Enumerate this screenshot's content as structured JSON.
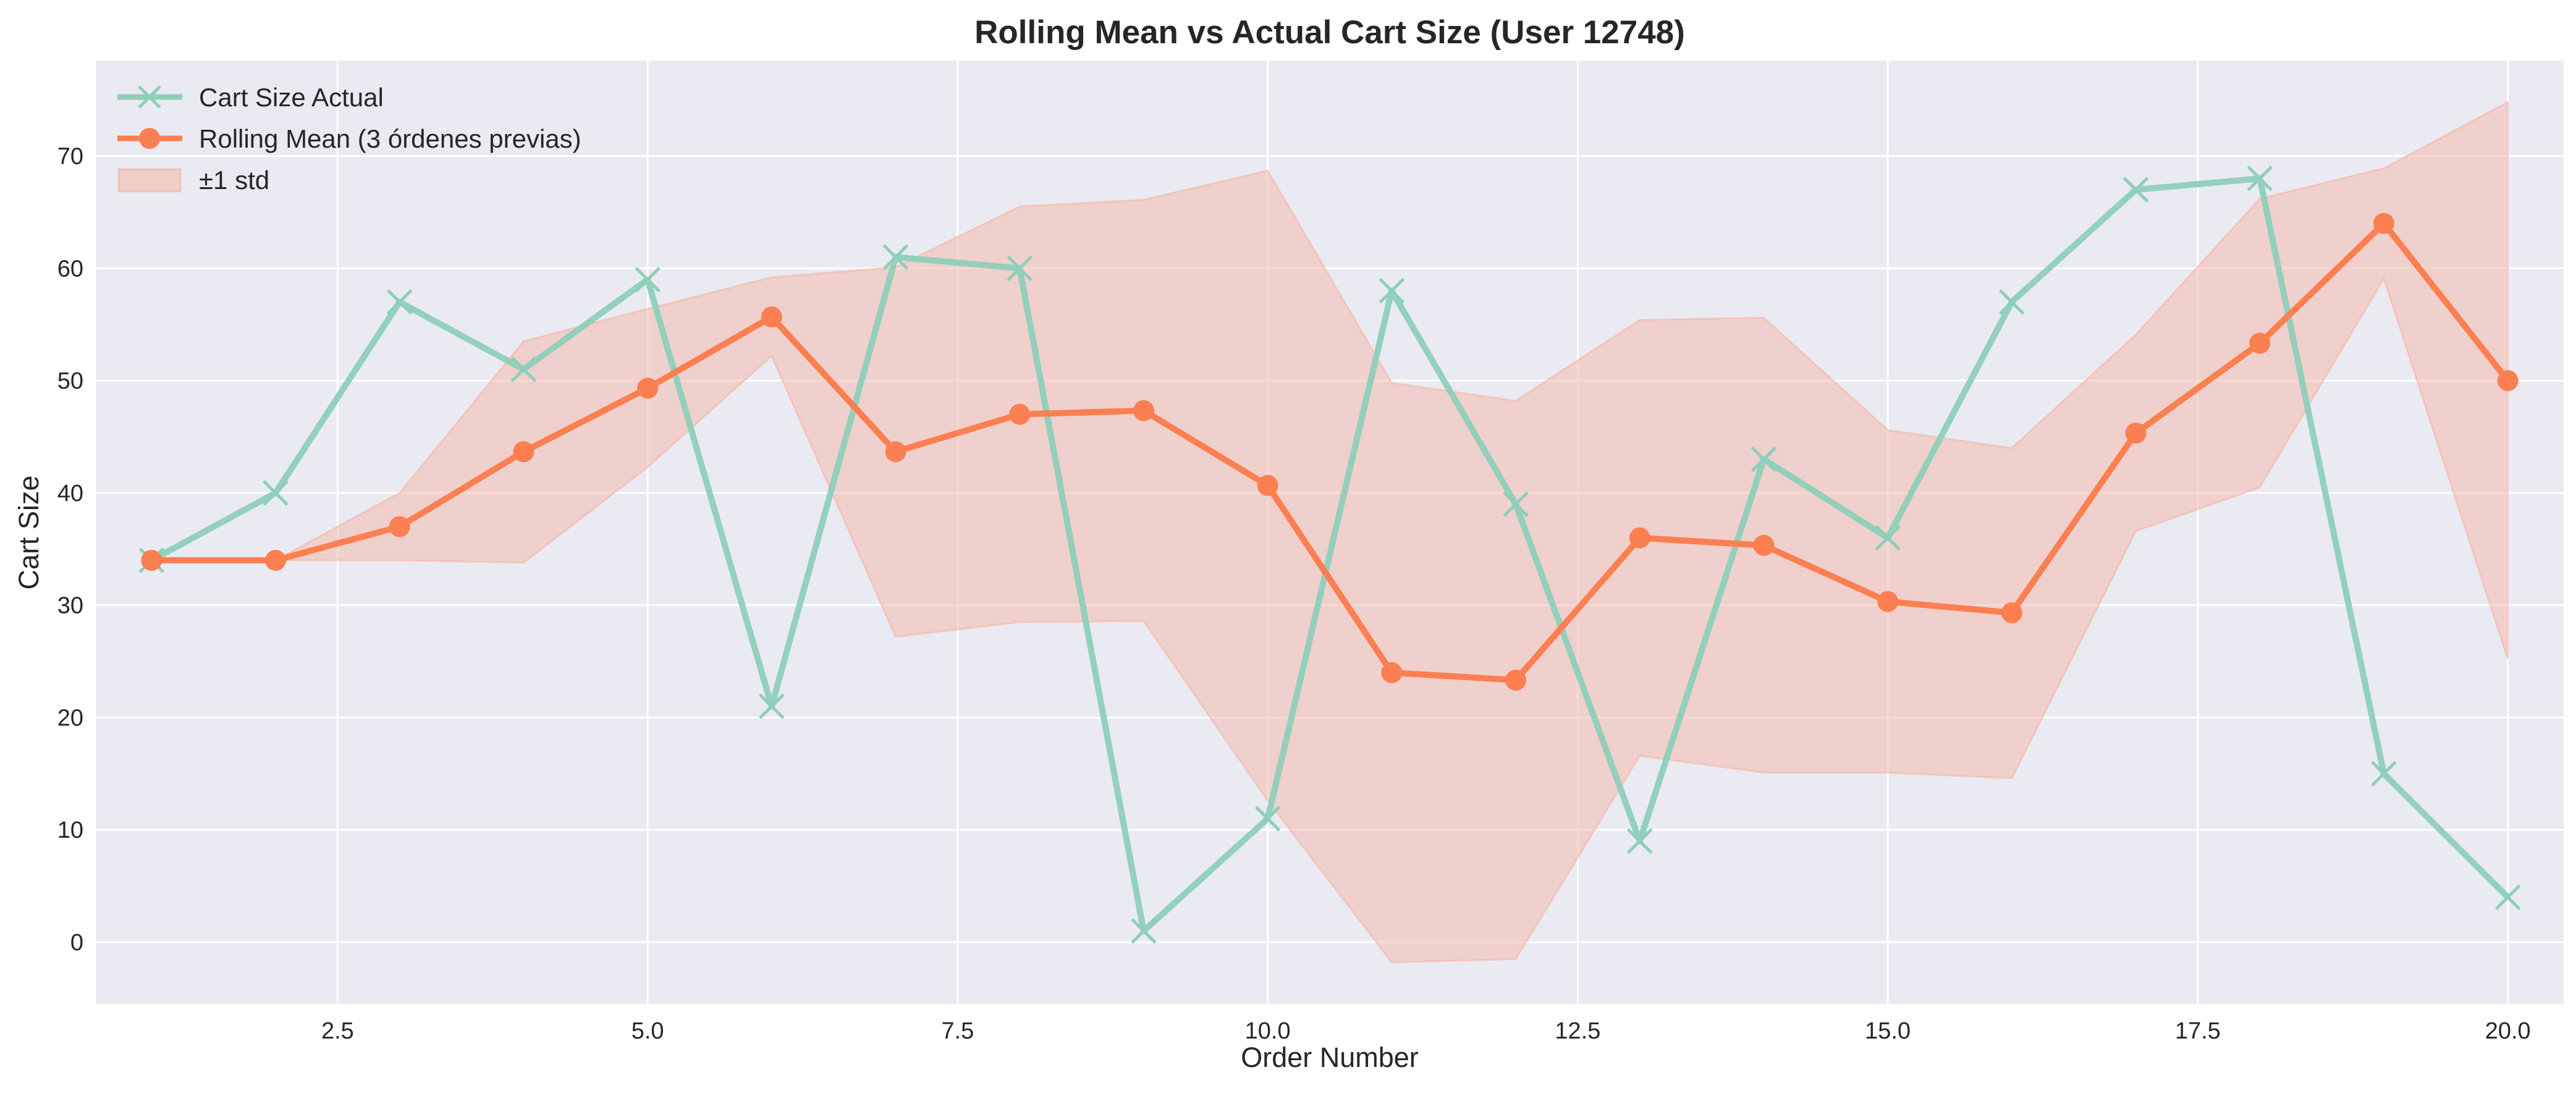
{
  "chart_data": {
    "type": "line",
    "title": "Rolling Mean vs Actual Cart Size (User 12748)",
    "xlabel": "Order Number",
    "ylabel": "Cart Size",
    "xlim": [
      0.55,
      20.45
    ],
    "ylim": [
      -5.5,
      78.5
    ],
    "xticks": [
      2.5,
      5.0,
      7.5,
      10.0,
      12.5,
      15.0,
      17.5,
      20.0
    ],
    "xtick_labels": [
      "2.5",
      "5.0",
      "7.5",
      "10.0",
      "12.5",
      "15.0",
      "17.5",
      "20.0"
    ],
    "yticks": [
      0,
      10,
      20,
      30,
      40,
      50,
      60,
      70
    ],
    "ytick_labels": [
      "0",
      "10",
      "20",
      "30",
      "40",
      "50",
      "60",
      "70"
    ],
    "grid": true,
    "legend_position": "top-left",
    "x": [
      1,
      2,
      3,
      4,
      5,
      6,
      7,
      8,
      9,
      10,
      11,
      12,
      13,
      14,
      15,
      16,
      17,
      18,
      19,
      20
    ],
    "series": [
      {
        "name": "Cart Size Actual",
        "kind": "line",
        "marker": "x",
        "color": "#8ecfb9",
        "values": [
          34,
          40,
          57,
          51,
          59,
          21,
          61,
          60,
          1,
          11,
          58,
          39,
          9,
          43,
          36,
          57,
          67,
          68,
          15,
          4
        ]
      },
      {
        "name": "Rolling Mean (3 órdenes previas)",
        "kind": "line",
        "marker": "o",
        "color": "#fc7f51",
        "values": [
          34,
          34,
          37,
          43.67,
          49.33,
          55.67,
          43.67,
          47,
          47.33,
          40.67,
          24,
          23.33,
          36,
          35.33,
          30.33,
          29.33,
          45.33,
          53.33,
          64,
          50
        ]
      },
      {
        "name": "±1 std",
        "kind": "band",
        "color": "#f3b6a6",
        "lower": [
          34,
          34,
          34,
          33.8,
          42.3,
          52.2,
          27.2,
          28.5,
          28.6,
          12.6,
          -1.8,
          -1.5,
          16.6,
          15.1,
          15.1,
          14.6,
          36.6,
          40.5,
          59.1,
          25.2
        ],
        "upper": [
          34,
          34,
          40,
          53.5,
          56.4,
          59.2,
          60.1,
          65.5,
          66.1,
          68.7,
          49.8,
          48.2,
          55.4,
          55.6,
          45.6,
          44.0,
          54.1,
          66.2,
          68.9,
          74.8
        ]
      }
    ]
  }
}
